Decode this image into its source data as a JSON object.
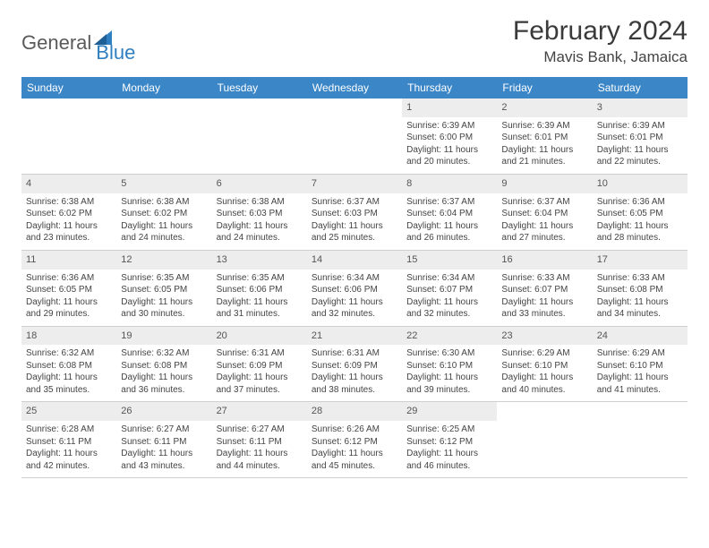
{
  "logo": {
    "general": "General",
    "blue": "Blue"
  },
  "header": {
    "title": "February 2024",
    "location": "Mavis Bank, Jamaica"
  },
  "colors": {
    "header_bg": "#3b86c7",
    "header_text": "#ffffff",
    "daynum_bg": "#ededed",
    "cell_border": "#cfcfcf",
    "body_text": "#444444",
    "logo_gray": "#5a5a5a",
    "logo_blue": "#2f7fc1"
  },
  "days_of_week": [
    "Sunday",
    "Monday",
    "Tuesday",
    "Wednesday",
    "Thursday",
    "Friday",
    "Saturday"
  ],
  "grid": [
    [
      {
        "empty": true
      },
      {
        "empty": true
      },
      {
        "empty": true
      },
      {
        "empty": true
      },
      {
        "day": "1",
        "sunrise": "Sunrise: 6:39 AM",
        "sunset": "Sunset: 6:00 PM",
        "dl1": "Daylight: 11 hours",
        "dl2": "and 20 minutes."
      },
      {
        "day": "2",
        "sunrise": "Sunrise: 6:39 AM",
        "sunset": "Sunset: 6:01 PM",
        "dl1": "Daylight: 11 hours",
        "dl2": "and 21 minutes."
      },
      {
        "day": "3",
        "sunrise": "Sunrise: 6:39 AM",
        "sunset": "Sunset: 6:01 PM",
        "dl1": "Daylight: 11 hours",
        "dl2": "and 22 minutes."
      }
    ],
    [
      {
        "day": "4",
        "sunrise": "Sunrise: 6:38 AM",
        "sunset": "Sunset: 6:02 PM",
        "dl1": "Daylight: 11 hours",
        "dl2": "and 23 minutes."
      },
      {
        "day": "5",
        "sunrise": "Sunrise: 6:38 AM",
        "sunset": "Sunset: 6:02 PM",
        "dl1": "Daylight: 11 hours",
        "dl2": "and 24 minutes."
      },
      {
        "day": "6",
        "sunrise": "Sunrise: 6:38 AM",
        "sunset": "Sunset: 6:03 PM",
        "dl1": "Daylight: 11 hours",
        "dl2": "and 24 minutes."
      },
      {
        "day": "7",
        "sunrise": "Sunrise: 6:37 AM",
        "sunset": "Sunset: 6:03 PM",
        "dl1": "Daylight: 11 hours",
        "dl2": "and 25 minutes."
      },
      {
        "day": "8",
        "sunrise": "Sunrise: 6:37 AM",
        "sunset": "Sunset: 6:04 PM",
        "dl1": "Daylight: 11 hours",
        "dl2": "and 26 minutes."
      },
      {
        "day": "9",
        "sunrise": "Sunrise: 6:37 AM",
        "sunset": "Sunset: 6:04 PM",
        "dl1": "Daylight: 11 hours",
        "dl2": "and 27 minutes."
      },
      {
        "day": "10",
        "sunrise": "Sunrise: 6:36 AM",
        "sunset": "Sunset: 6:05 PM",
        "dl1": "Daylight: 11 hours",
        "dl2": "and 28 minutes."
      }
    ],
    [
      {
        "day": "11",
        "sunrise": "Sunrise: 6:36 AM",
        "sunset": "Sunset: 6:05 PM",
        "dl1": "Daylight: 11 hours",
        "dl2": "and 29 minutes."
      },
      {
        "day": "12",
        "sunrise": "Sunrise: 6:35 AM",
        "sunset": "Sunset: 6:05 PM",
        "dl1": "Daylight: 11 hours",
        "dl2": "and 30 minutes."
      },
      {
        "day": "13",
        "sunrise": "Sunrise: 6:35 AM",
        "sunset": "Sunset: 6:06 PM",
        "dl1": "Daylight: 11 hours",
        "dl2": "and 31 minutes."
      },
      {
        "day": "14",
        "sunrise": "Sunrise: 6:34 AM",
        "sunset": "Sunset: 6:06 PM",
        "dl1": "Daylight: 11 hours",
        "dl2": "and 32 minutes."
      },
      {
        "day": "15",
        "sunrise": "Sunrise: 6:34 AM",
        "sunset": "Sunset: 6:07 PM",
        "dl1": "Daylight: 11 hours",
        "dl2": "and 32 minutes."
      },
      {
        "day": "16",
        "sunrise": "Sunrise: 6:33 AM",
        "sunset": "Sunset: 6:07 PM",
        "dl1": "Daylight: 11 hours",
        "dl2": "and 33 minutes."
      },
      {
        "day": "17",
        "sunrise": "Sunrise: 6:33 AM",
        "sunset": "Sunset: 6:08 PM",
        "dl1": "Daylight: 11 hours",
        "dl2": "and 34 minutes."
      }
    ],
    [
      {
        "day": "18",
        "sunrise": "Sunrise: 6:32 AM",
        "sunset": "Sunset: 6:08 PM",
        "dl1": "Daylight: 11 hours",
        "dl2": "and 35 minutes."
      },
      {
        "day": "19",
        "sunrise": "Sunrise: 6:32 AM",
        "sunset": "Sunset: 6:08 PM",
        "dl1": "Daylight: 11 hours",
        "dl2": "and 36 minutes."
      },
      {
        "day": "20",
        "sunrise": "Sunrise: 6:31 AM",
        "sunset": "Sunset: 6:09 PM",
        "dl1": "Daylight: 11 hours",
        "dl2": "and 37 minutes."
      },
      {
        "day": "21",
        "sunrise": "Sunrise: 6:31 AM",
        "sunset": "Sunset: 6:09 PM",
        "dl1": "Daylight: 11 hours",
        "dl2": "and 38 minutes."
      },
      {
        "day": "22",
        "sunrise": "Sunrise: 6:30 AM",
        "sunset": "Sunset: 6:10 PM",
        "dl1": "Daylight: 11 hours",
        "dl2": "and 39 minutes."
      },
      {
        "day": "23",
        "sunrise": "Sunrise: 6:29 AM",
        "sunset": "Sunset: 6:10 PM",
        "dl1": "Daylight: 11 hours",
        "dl2": "and 40 minutes."
      },
      {
        "day": "24",
        "sunrise": "Sunrise: 6:29 AM",
        "sunset": "Sunset: 6:10 PM",
        "dl1": "Daylight: 11 hours",
        "dl2": "and 41 minutes."
      }
    ],
    [
      {
        "day": "25",
        "sunrise": "Sunrise: 6:28 AM",
        "sunset": "Sunset: 6:11 PM",
        "dl1": "Daylight: 11 hours",
        "dl2": "and 42 minutes."
      },
      {
        "day": "26",
        "sunrise": "Sunrise: 6:27 AM",
        "sunset": "Sunset: 6:11 PM",
        "dl1": "Daylight: 11 hours",
        "dl2": "and 43 minutes."
      },
      {
        "day": "27",
        "sunrise": "Sunrise: 6:27 AM",
        "sunset": "Sunset: 6:11 PM",
        "dl1": "Daylight: 11 hours",
        "dl2": "and 44 minutes."
      },
      {
        "day": "28",
        "sunrise": "Sunrise: 6:26 AM",
        "sunset": "Sunset: 6:12 PM",
        "dl1": "Daylight: 11 hours",
        "dl2": "and 45 minutes."
      },
      {
        "day": "29",
        "sunrise": "Sunrise: 6:25 AM",
        "sunset": "Sunset: 6:12 PM",
        "dl1": "Daylight: 11 hours",
        "dl2": "and 46 minutes."
      },
      {
        "empty": true
      },
      {
        "empty": true
      }
    ]
  ]
}
